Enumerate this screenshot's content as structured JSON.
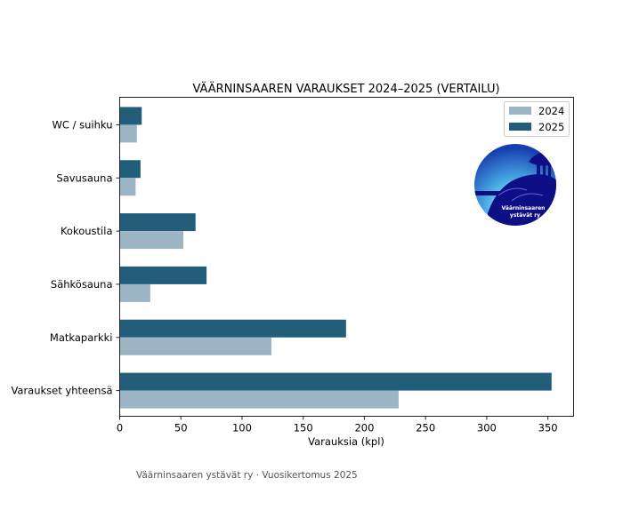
{
  "chart_data": {
    "type": "bar",
    "orientation": "horizontal",
    "title": "VÄÄRNINSAAREN VARAUKSET 2024–2025 (VERTAILU)",
    "xlabel": "Varauksia (kpl)",
    "ylabel": "",
    "xlim": [
      0,
      371
    ],
    "xticks": [
      0,
      50,
      100,
      150,
      200,
      250,
      300,
      350
    ],
    "categories": [
      "WC / suihku",
      "Savusauna",
      "Kokoustila",
      "Sähkösauna",
      "Matkaparkki",
      "Varaukset yhteensä"
    ],
    "series": [
      {
        "name": "2024",
        "color": "#9bb5c4",
        "values": [
          14,
          13,
          52,
          25,
          124,
          228
        ]
      },
      {
        "name": "2025",
        "color": "#225e7a",
        "values": [
          18,
          17,
          62,
          71,
          185,
          353
        ]
      }
    ],
    "legend": {
      "position": "top-right",
      "entries": [
        "2024",
        "2025"
      ]
    },
    "grid": false
  },
  "logo": {
    "line1": "Väärninsaaren",
    "line2": "ystävät ry"
  },
  "footer": "Väärninsaaren ystävät ry · Vuosikertomus 2025"
}
